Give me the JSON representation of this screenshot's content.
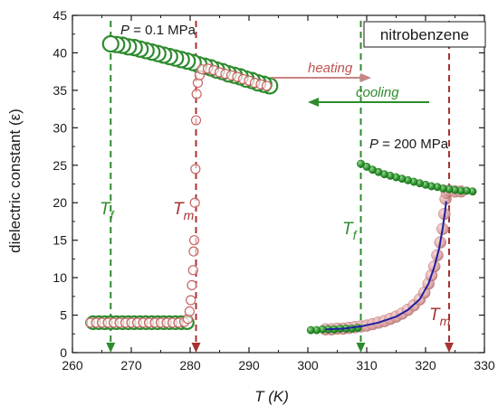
{
  "chart_data": {
    "type": "scatter",
    "title": "",
    "xlabel": "T  (K)",
    "ylabel": "dielectric constant  (ε)",
    "xlim": [
      260,
      330
    ],
    "ylim": [
      0,
      45
    ],
    "xticks": [
      260,
      270,
      280,
      290,
      300,
      310,
      320,
      330
    ],
    "yticks": [
      0,
      5,
      10,
      15,
      20,
      25,
      30,
      35,
      40,
      45
    ],
    "grid": false,
    "legend_box": "nitrobenzene",
    "legend_position": "top-right",
    "colors": {
      "cooling": "#2e8b2e",
      "heating": "#e8a0a0",
      "heating_edge": "#c86464",
      "fit": "#2020a0",
      "tm_line": "#a83232",
      "tf_line": "#2e8b2e"
    },
    "series": [
      {
        "name": "cooling",
        "pressure": "0.1 MPa",
        "points": [
          [
            293.5,
            35.6
          ],
          [
            292.5,
            35.8
          ],
          [
            291.5,
            36.0
          ],
          [
            290.5,
            36.3
          ],
          [
            289.5,
            36.5
          ],
          [
            288.5,
            36.8
          ],
          [
            287.5,
            37.0
          ],
          [
            286.5,
            37.2
          ],
          [
            285.5,
            37.5
          ],
          [
            284.5,
            37.7
          ],
          [
            283.5,
            38.0
          ],
          [
            282.5,
            38.2
          ],
          [
            281.5,
            38.4
          ],
          [
            280.5,
            38.7
          ],
          [
            279.5,
            38.9
          ],
          [
            278.5,
            39.1
          ],
          [
            277.5,
            39.3
          ],
          [
            276.5,
            39.5
          ],
          [
            275.5,
            39.7
          ],
          [
            274.5,
            39.9
          ],
          [
            273.5,
            40.1
          ],
          [
            272.5,
            40.3
          ],
          [
            271.5,
            40.5
          ],
          [
            270.5,
            40.7
          ],
          [
            269.5,
            40.8
          ],
          [
            268.5,
            41.0
          ],
          [
            267.5,
            41.1
          ],
          [
            266.5,
            41.2
          ],
          [
            263.5,
            4.0
          ],
          [
            264.5,
            4.0
          ],
          [
            265.5,
            4.0
          ],
          [
            266.5,
            4.0
          ],
          [
            267.5,
            4.0
          ],
          [
            268.5,
            4.0
          ],
          [
            269.5,
            4.0
          ],
          [
            270.5,
            4.0
          ],
          [
            271.5,
            4.0
          ],
          [
            272.5,
            4.0
          ],
          [
            273.5,
            4.0
          ],
          [
            274.5,
            4.0
          ],
          [
            275.5,
            4.0
          ],
          [
            276.5,
            4.0
          ],
          [
            277.5,
            4.0
          ],
          [
            278.5,
            4.0
          ],
          [
            279.5,
            4.0
          ]
        ]
      },
      {
        "name": "heating",
        "pressure": "0.1 MPa",
        "points": [
          [
            263.0,
            4.0
          ],
          [
            264.0,
            4.0
          ],
          [
            265.0,
            4.0
          ],
          [
            266.0,
            4.0
          ],
          [
            267.0,
            4.0
          ],
          [
            268.0,
            4.0
          ],
          [
            269.0,
            4.0
          ],
          [
            270.0,
            4.0
          ],
          [
            271.0,
            4.0
          ],
          [
            272.0,
            4.0
          ],
          [
            273.0,
            4.0
          ],
          [
            274.0,
            4.0
          ],
          [
            275.0,
            4.0
          ],
          [
            276.0,
            4.0
          ],
          [
            277.0,
            4.0
          ],
          [
            278.0,
            4.0
          ],
          [
            279.0,
            4.1
          ],
          [
            279.6,
            4.5
          ],
          [
            279.9,
            5.5
          ],
          [
            280.1,
            7.0
          ],
          [
            280.3,
            9.0
          ],
          [
            280.5,
            11.0
          ],
          [
            280.6,
            13.5
          ],
          [
            280.7,
            15.0
          ],
          [
            280.8,
            20.0
          ],
          [
            280.9,
            24.5
          ],
          [
            281.0,
            31.0
          ],
          [
            281.1,
            34.5
          ],
          [
            281.3,
            36.0
          ],
          [
            281.6,
            37.0
          ],
          [
            282.0,
            37.8
          ],
          [
            283.0,
            37.9
          ],
          [
            284.0,
            37.7
          ],
          [
            285.0,
            37.4
          ],
          [
            286.0,
            37.2
          ],
          [
            287.0,
            37.0
          ],
          [
            288.0,
            36.8
          ],
          [
            289.0,
            36.5
          ],
          [
            290.0,
            36.3
          ],
          [
            291.0,
            36.0
          ],
          [
            292.0,
            35.8
          ],
          [
            293.0,
            35.6
          ]
        ]
      },
      {
        "name": "cooling",
        "pressure": "200 MPa",
        "points": [
          [
            328.0,
            21.5
          ],
          [
            327.0,
            21.6
          ],
          [
            326.0,
            21.6
          ],
          [
            325.0,
            21.7
          ],
          [
            324.0,
            21.8
          ],
          [
            323.0,
            21.9
          ],
          [
            322.0,
            22.1
          ],
          [
            321.0,
            22.2
          ],
          [
            320.0,
            22.4
          ],
          [
            319.0,
            22.6
          ],
          [
            318.0,
            22.8
          ],
          [
            317.0,
            23.0
          ],
          [
            316.0,
            23.2
          ],
          [
            315.0,
            23.4
          ],
          [
            314.0,
            23.6
          ],
          [
            313.0,
            23.8
          ],
          [
            312.0,
            24.1
          ],
          [
            311.0,
            24.4
          ],
          [
            310.0,
            24.8
          ],
          [
            309.0,
            25.2
          ],
          [
            308.5,
            3.3
          ],
          [
            307.5,
            3.2
          ],
          [
            306.5,
            3.2
          ],
          [
            305.5,
            3.2
          ],
          [
            304.5,
            3.1
          ],
          [
            303.5,
            3.1
          ],
          [
            302.5,
            3.1
          ],
          [
            301.5,
            3.0
          ],
          [
            300.5,
            3.0
          ]
        ]
      },
      {
        "name": "heating",
        "pressure": "200 MPa",
        "points": [
          [
            303.0,
            3.1
          ],
          [
            304.0,
            3.1
          ],
          [
            305.0,
            3.2
          ],
          [
            306.0,
            3.2
          ],
          [
            307.0,
            3.3
          ],
          [
            308.0,
            3.4
          ],
          [
            309.0,
            3.5
          ],
          [
            310.0,
            3.6
          ],
          [
            311.0,
            3.8
          ],
          [
            312.0,
            4.0
          ],
          [
            313.0,
            4.2
          ],
          [
            314.0,
            4.5
          ],
          [
            315.0,
            4.8
          ],
          [
            316.0,
            5.2
          ],
          [
            317.0,
            5.7
          ],
          [
            318.0,
            6.3
          ],
          [
            319.0,
            7.1
          ],
          [
            319.8,
            8.0
          ],
          [
            320.5,
            9.2
          ],
          [
            321.0,
            10.3
          ],
          [
            321.5,
            11.5
          ],
          [
            322.0,
            13.0
          ],
          [
            322.5,
            14.7
          ],
          [
            322.9,
            16.5
          ],
          [
            323.2,
            18.5
          ],
          [
            323.4,
            20.5
          ],
          [
            323.6,
            21.3
          ],
          [
            324.0,
            21.6
          ],
          [
            325.0,
            21.5
          ],
          [
            326.0,
            21.5
          ]
        ]
      },
      {
        "name": "fit",
        "pressure": "200 MPa",
        "points": [
          [
            303.0,
            3.1
          ],
          [
            306.0,
            3.2
          ],
          [
            309.0,
            3.5
          ],
          [
            312.0,
            4.0
          ],
          [
            315.0,
            4.8
          ],
          [
            317.0,
            5.7
          ],
          [
            319.0,
            7.1
          ],
          [
            320.5,
            9.2
          ],
          [
            321.5,
            11.5
          ],
          [
            322.3,
            13.9
          ],
          [
            322.9,
            16.5
          ],
          [
            323.3,
            18.8
          ],
          [
            323.5,
            20.2
          ]
        ]
      }
    ],
    "vlines": [
      {
        "id": "tf1",
        "x": 266.5,
        "color": "#2e8b2e"
      },
      {
        "id": "tm1",
        "x": 281.0,
        "color": "#a83232"
      },
      {
        "id": "tf2",
        "x": 309.0,
        "color": "#2e8b2e"
      },
      {
        "id": "tm2",
        "x": 324.0,
        "color": "#a83232"
      }
    ],
    "annotations": {
      "p_low": {
        "prefix": "P",
        "suffix": " = 0.1 MPa"
      },
      "p_high": {
        "prefix": "P",
        "suffix": " = 200 MPa"
      },
      "heating_label": "heating",
      "cooling_label": "cooling",
      "tf": {
        "main": "T",
        "sub": "f"
      },
      "tm": {
        "main": "T",
        "sub": "m"
      }
    }
  }
}
